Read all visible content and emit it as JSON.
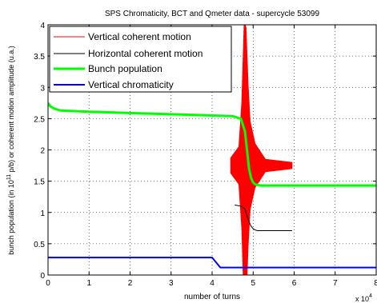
{
  "chart_data": {
    "type": "line",
    "title": "SPS Chromaticity, BCT and Qmeter data - supercycle 53099",
    "xlabel": "number of turns",
    "ylabel_parts": {
      "pre": "bunch population (in 10",
      "sup": "11",
      "post": " p/b) or coherent motion amplitude (u.a.)"
    },
    "x_exponent_label": {
      "base": "x 10",
      "exp": "4"
    },
    "xlim": [
      0,
      8
    ],
    "ylim": [
      0,
      4
    ],
    "x_ticks": [
      "0",
      "1",
      "2",
      "3",
      "4",
      "5",
      "6",
      "7",
      "8"
    ],
    "y_ticks": [
      "0",
      "0.5",
      "1",
      "1.5",
      "2",
      "2.5",
      "3",
      "3.5",
      "4"
    ],
    "grid": true,
    "legend_position": "top-left",
    "series": [
      {
        "name": "Vertical coherent motion",
        "color": "#ff0000",
        "style": "oscillation",
        "x_start": 4.45,
        "x_end": 5.95,
        "center": 1.75,
        "envelope": [
          [
            4.45,
            0.12
          ],
          [
            4.65,
            0.3
          ],
          [
            4.72,
            1.0
          ],
          [
            4.78,
            2.3
          ],
          [
            4.83,
            2.2
          ],
          [
            4.88,
            1.3
          ],
          [
            4.93,
            0.7
          ],
          [
            5.05,
            0.35
          ],
          [
            5.3,
            0.1
          ],
          [
            5.95,
            0.05
          ]
        ]
      },
      {
        "name": "Horizontal coherent motion",
        "color": "#000000",
        "x": [
          4.55,
          4.7,
          4.8,
          4.85,
          4.9,
          4.95,
          5.0,
          5.05,
          5.1,
          5.3,
          5.95
        ],
        "y": [
          1.12,
          1.1,
          1.06,
          0.95,
          0.85,
          0.78,
          0.74,
          0.72,
          0.71,
          0.71,
          0.71
        ]
      },
      {
        "name": "Bunch population",
        "color": "#00ff00",
        "x": [
          0,
          0.05,
          0.15,
          0.3,
          1,
          2,
          3,
          4,
          4.5,
          4.7,
          4.8,
          4.85,
          4.9,
          4.95,
          5.0,
          5.05,
          5.1,
          5.2,
          5.4,
          6,
          7,
          8
        ],
        "y": [
          2.75,
          2.7,
          2.66,
          2.63,
          2.61,
          2.59,
          2.57,
          2.55,
          2.54,
          2.5,
          2.3,
          2.0,
          1.7,
          1.55,
          1.48,
          1.45,
          1.44,
          1.43,
          1.43,
          1.43,
          1.43,
          1.43
        ]
      },
      {
        "name": "Vertical chromaticity",
        "color": "#0000ff",
        "x": [
          0,
          4.0,
          4.2,
          5.0,
          8
        ],
        "y": [
          0.28,
          0.28,
          0.12,
          0.12,
          0.12
        ]
      }
    ]
  }
}
